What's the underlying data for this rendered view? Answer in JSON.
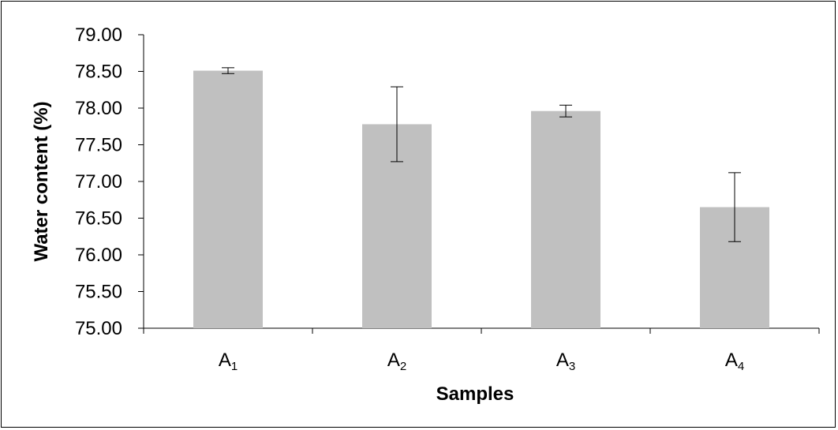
{
  "chart_data": {
    "type": "bar",
    "categories": [
      {
        "base": "A",
        "sub": "1"
      },
      {
        "base": "A",
        "sub": "2"
      },
      {
        "base": "A",
        "sub": "3"
      },
      {
        "base": "A",
        "sub": "4"
      }
    ],
    "series": [
      {
        "values": [
          78.51,
          77.78,
          77.96,
          76.65
        ],
        "error_plus": [
          0.04,
          0.51,
          0.08,
          0.47
        ],
        "error_minus": [
          0.04,
          0.51,
          0.08,
          0.47
        ],
        "color": "#c0c0c0"
      }
    ],
    "xlabel": "Samples",
    "ylabel": "Water content (%)",
    "ylim": [
      75.0,
      79.0
    ],
    "yticks": [
      "75.00",
      "75.50",
      "76.00",
      "76.50",
      "77.00",
      "77.50",
      "78.00",
      "78.50",
      "79.00"
    ],
    "grid": false,
    "legend": "none"
  }
}
